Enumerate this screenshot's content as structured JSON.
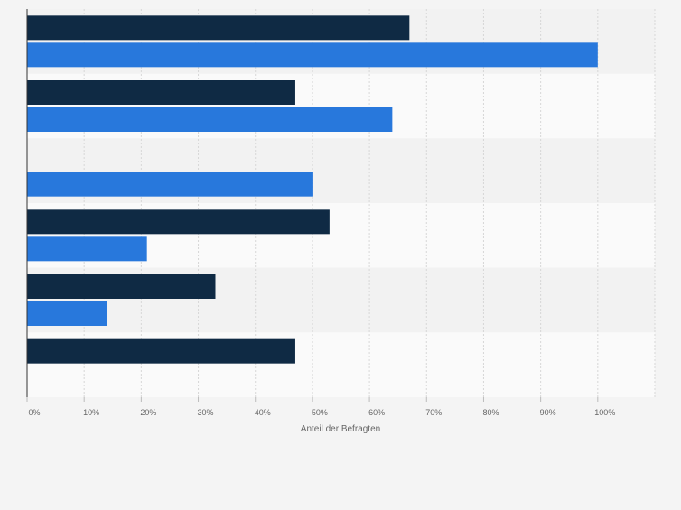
{
  "chart_data": {
    "type": "bar",
    "orientation": "horizontal",
    "categories": [
      "",
      "",
      "",
      "",
      "",
      ""
    ],
    "series": [
      {
        "color": "#0f2a44",
        "values": [
          67,
          47,
          null,
          53,
          33,
          47
        ]
      },
      {
        "color": "#2878dc",
        "values": [
          100,
          64,
          50,
          21,
          14,
          null
        ]
      }
    ],
    "xlim": [
      0,
      110
    ],
    "xticks": [
      0,
      10,
      20,
      30,
      40,
      50,
      60,
      70,
      80,
      90,
      100
    ],
    "xtick_labels": [
      "0%",
      "10%",
      "20%",
      "30%",
      "40%",
      "50%",
      "60%",
      "70%",
      "80%",
      "90%",
      "100%"
    ],
    "xlabel": "Anteil der Befragten",
    "grid": true,
    "legend": "none"
  }
}
